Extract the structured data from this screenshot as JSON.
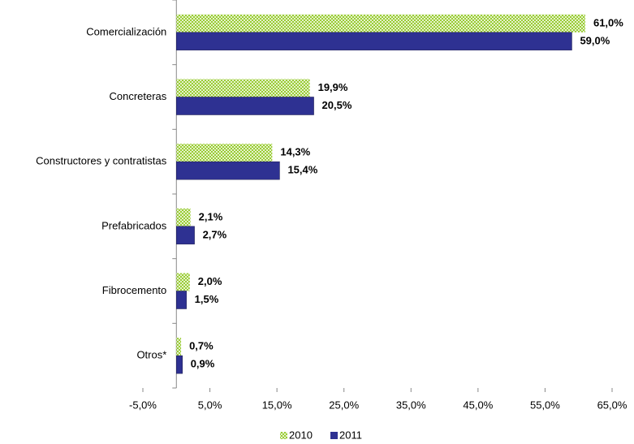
{
  "chart_data": {
    "type": "hbar",
    "categories": [
      "Comercialización",
      "Concreteras",
      "Constructores y contratistas",
      "Prefabricados",
      "Fibrocemento",
      "Otros*"
    ],
    "series": [
      {
        "name": "2010",
        "color": "#99cc33",
        "values": [
          61.0,
          19.9,
          14.3,
          2.1,
          2.0,
          0.7
        ],
        "value_labels": [
          "61,0%",
          "19,9%",
          "14,3%",
          "2,1%",
          "2,0%",
          "0,7%"
        ]
      },
      {
        "name": "2011",
        "color": "#2e3192",
        "values": [
          59.0,
          20.5,
          15.4,
          2.7,
          1.5,
          0.9
        ],
        "value_labels": [
          "59,0%",
          "20,5%",
          "15,4%",
          "2,7%",
          "1,5%",
          "0,9%"
        ]
      }
    ],
    "xlim": [
      -5,
      65
    ],
    "xticks": [
      {
        "value": -5,
        "label": "-5,0%"
      },
      {
        "value": 5,
        "label": "5,0%"
      },
      {
        "value": 15,
        "label": "15,0%"
      },
      {
        "value": 25,
        "label": "25,0%"
      },
      {
        "value": 35,
        "label": "35,0%"
      },
      {
        "value": 45,
        "label": "45,0%"
      },
      {
        "value": 55,
        "label": "55,0%"
      },
      {
        "value": 65,
        "label": "65,0%"
      }
    ],
    "legend": "bottom"
  }
}
